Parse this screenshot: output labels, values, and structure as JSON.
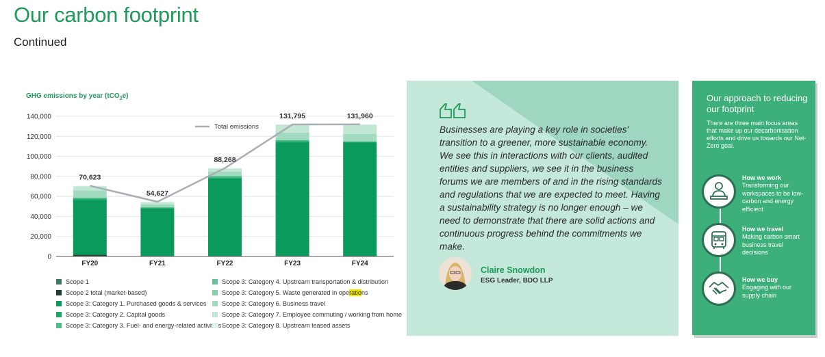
{
  "page": {
    "title": "Our carbon footprint",
    "subtitle": "Continued"
  },
  "chart_data": {
    "type": "bar",
    "title": "GHG emissions by year (tCO₂e)",
    "title_parts": {
      "pre": "GHG emissions by year (tCO",
      "sub": "2",
      "post": "e)"
    },
    "stacked": true,
    "categories": [
      "FY20",
      "FY21",
      "FY22",
      "FY23",
      "FY24"
    ],
    "ylim": [
      0,
      140000
    ],
    "yticks": [
      "0",
      "20,000",
      "40,000",
      "60,000",
      "80,000",
      "100,000",
      "120,000",
      "140,000"
    ],
    "ytick_values": [
      0,
      20000,
      40000,
      60000,
      80000,
      100000,
      120000,
      140000
    ],
    "grid": true,
    "series": [
      {
        "name": "Scope 1",
        "color": "#3e7a65",
        "values": [
          600,
          200,
          200,
          200,
          200
        ]
      },
      {
        "name": "Scope 2 total (market-based)",
        "color": "#1f3d31",
        "values": [
          1200,
          300,
          300,
          300,
          300
        ]
      },
      {
        "name": "Scope 3: Category 1. Purchased goods & services",
        "color": "#0a9a5c",
        "values": [
          54500,
          47500,
          77500,
          113500,
          113500
        ]
      },
      {
        "name": "Scope 3: Category 2. Capital goods",
        "color": "#1ea865",
        "values": [
          1500,
          700,
          1000,
          1200,
          200
        ]
      },
      {
        "name": "Scope 3: Category 3. Fuel- and energy-related activities",
        "color": "#4dbb88",
        "values": [
          800,
          600,
          1200,
          1000,
          800
        ]
      },
      {
        "name": "Scope 3: Category 4. Upstream transportation & distribution",
        "color": "#66c29b",
        "values": [
          300,
          200,
          300,
          300,
          300
        ]
      },
      {
        "name": "Scope 3: Category 5. Waste generated in operations",
        "color": "#85cfac",
        "values": [
          200,
          100,
          200,
          200,
          200
        ]
      },
      {
        "name": "Scope 3: Category 6. Business travel",
        "color": "#a2dbbf",
        "values": [
          7000,
          2500,
          4000,
          7000,
          7000
        ]
      },
      {
        "name": "Scope 3: Category 7. Employee commuting / working from home",
        "color": "#c2e8d5",
        "values": [
          4000,
          2000,
          3000,
          8000,
          9000
        ]
      },
      {
        "name": "Scope 3: Category 8. Upstream leased assets",
        "color": "#dff3e9",
        "values": [
          523,
          527,
          568,
          95,
          460
        ]
      }
    ],
    "total_series": {
      "name": "Total emissions",
      "color": "#a9adb6",
      "values": [
        70623,
        54627,
        88268,
        131795,
        131960
      ]
    },
    "total_labels": [
      "70,623",
      "54,627",
      "88,268",
      "131,795",
      "131,960"
    ],
    "legend_position": "below"
  },
  "legend": {
    "left": [
      {
        "label": "Scope 1",
        "color": "#3e7a65"
      },
      {
        "label": "Scope 2 total (market-based)",
        "color": "#1f3d31"
      },
      {
        "label": "Scope 3: Category 1. Purchased goods & services",
        "color": "#0a9a5c"
      },
      {
        "label": "Scope 3: Category 2. Capital goods",
        "color": "#1ea865"
      },
      {
        "label": "Scope 3: Category 3. Fuel- and energy-related activities",
        "color": "#4dbb88"
      }
    ],
    "right": [
      {
        "label": "Scope 3: Category 4. Upstream transportation & distribution",
        "color": "#66c29b"
      },
      {
        "label": "Scope 3: Category 5. Waste generated in operations",
        "color": "#85cfac",
        "hl_pre": "Scope 3: Category 5. Waste generated in ope",
        "hl": "ratio",
        "hl_post": "ns"
      },
      {
        "label": "Scope 3: Category 6. Business travel",
        "color": "#a2dbbf"
      },
      {
        "label": "Scope 3: Category 7. Employee commuting / working from home",
        "color": "#c2e8d5"
      },
      {
        "label": "Scope 3: Category 8. Upstream leased assets",
        "color": "#dff3e9"
      }
    ]
  },
  "quote": {
    "text": "Businesses are playing a key role in societies' transition to a greener, more sustainable economy. We see this in interactions with our clients, audited entities and suppliers, we see it in the business forums we are members of and in the rising standards and regulations that we are expected to meet. Having a sustainability strategy is no longer enough – we need to demonstrate that there are solid actions and continuous progress behind the commitments we make.",
    "name": "Claire Snowdon",
    "role": "ESG Leader, BDO LLP",
    "icon": "quote-marks-icon",
    "colors": {
      "panel": "#c4e8da",
      "accent": "#1e9a5a"
    }
  },
  "approach": {
    "title": "Our approach to reducing our footprint",
    "description": "There are three main focus areas that make up our decarbonisation efforts and drive us towards our Net-Zero goal.",
    "items": [
      {
        "title": "How we work",
        "description": "Transforming our workspaces to be low-carbon and energy efficient",
        "icon": "person-at-desk-icon"
      },
      {
        "title": "How we travel",
        "description": "Making carbon smart business travel decisions",
        "icon": "bus-icon"
      },
      {
        "title": "How we buy",
        "description": "Engaging with our supply chain",
        "icon": "handshake-icon"
      }
    ],
    "colors": {
      "panel": "#3daf7b",
      "ring": "#2f6e55"
    }
  }
}
